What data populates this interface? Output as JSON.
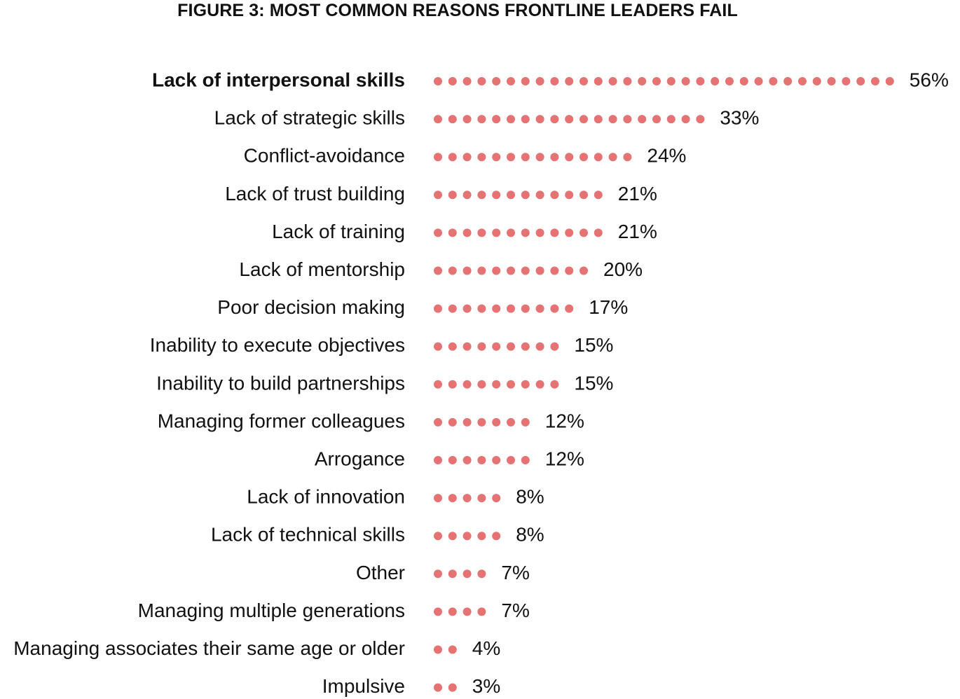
{
  "chart_data": {
    "type": "bar",
    "style": "dot-plot",
    "title": "FIGURE 3: MOST COMMON REASONS FRONTLINE LEADERS FAIL",
    "xlabel": "",
    "ylabel": "",
    "value_unit": "%",
    "highlighted_category": "Lack of interpersonal skills",
    "categories": [
      "Lack of interpersonal skills",
      "Lack of strategic skills",
      "Conflict-avoidance",
      "Lack of trust building",
      "Lack of training",
      "Lack of mentorship",
      "Poor decision making",
      "Inability to execute objectives",
      "Inability to build partnerships",
      "Managing former colleagues",
      "Arrogance",
      "Lack of innovation",
      "Lack of technical skills",
      "Other",
      "Managing multiple generations",
      "Managing associates their same age or older",
      "Impulsive"
    ],
    "values": [
      56,
      33,
      24,
      21,
      21,
      20,
      17,
      15,
      15,
      12,
      12,
      8,
      8,
      7,
      7,
      4,
      3
    ],
    "value_labels": [
      "56%",
      "33%",
      "24%",
      "21%",
      "21%",
      "20%",
      "17%",
      "15%",
      "15%",
      "12%",
      "12%",
      "8%",
      "8%",
      "7%",
      "7%",
      "4%",
      "3%"
    ],
    "dot_color": "#e57373",
    "grid": false,
    "legend": "none"
  }
}
